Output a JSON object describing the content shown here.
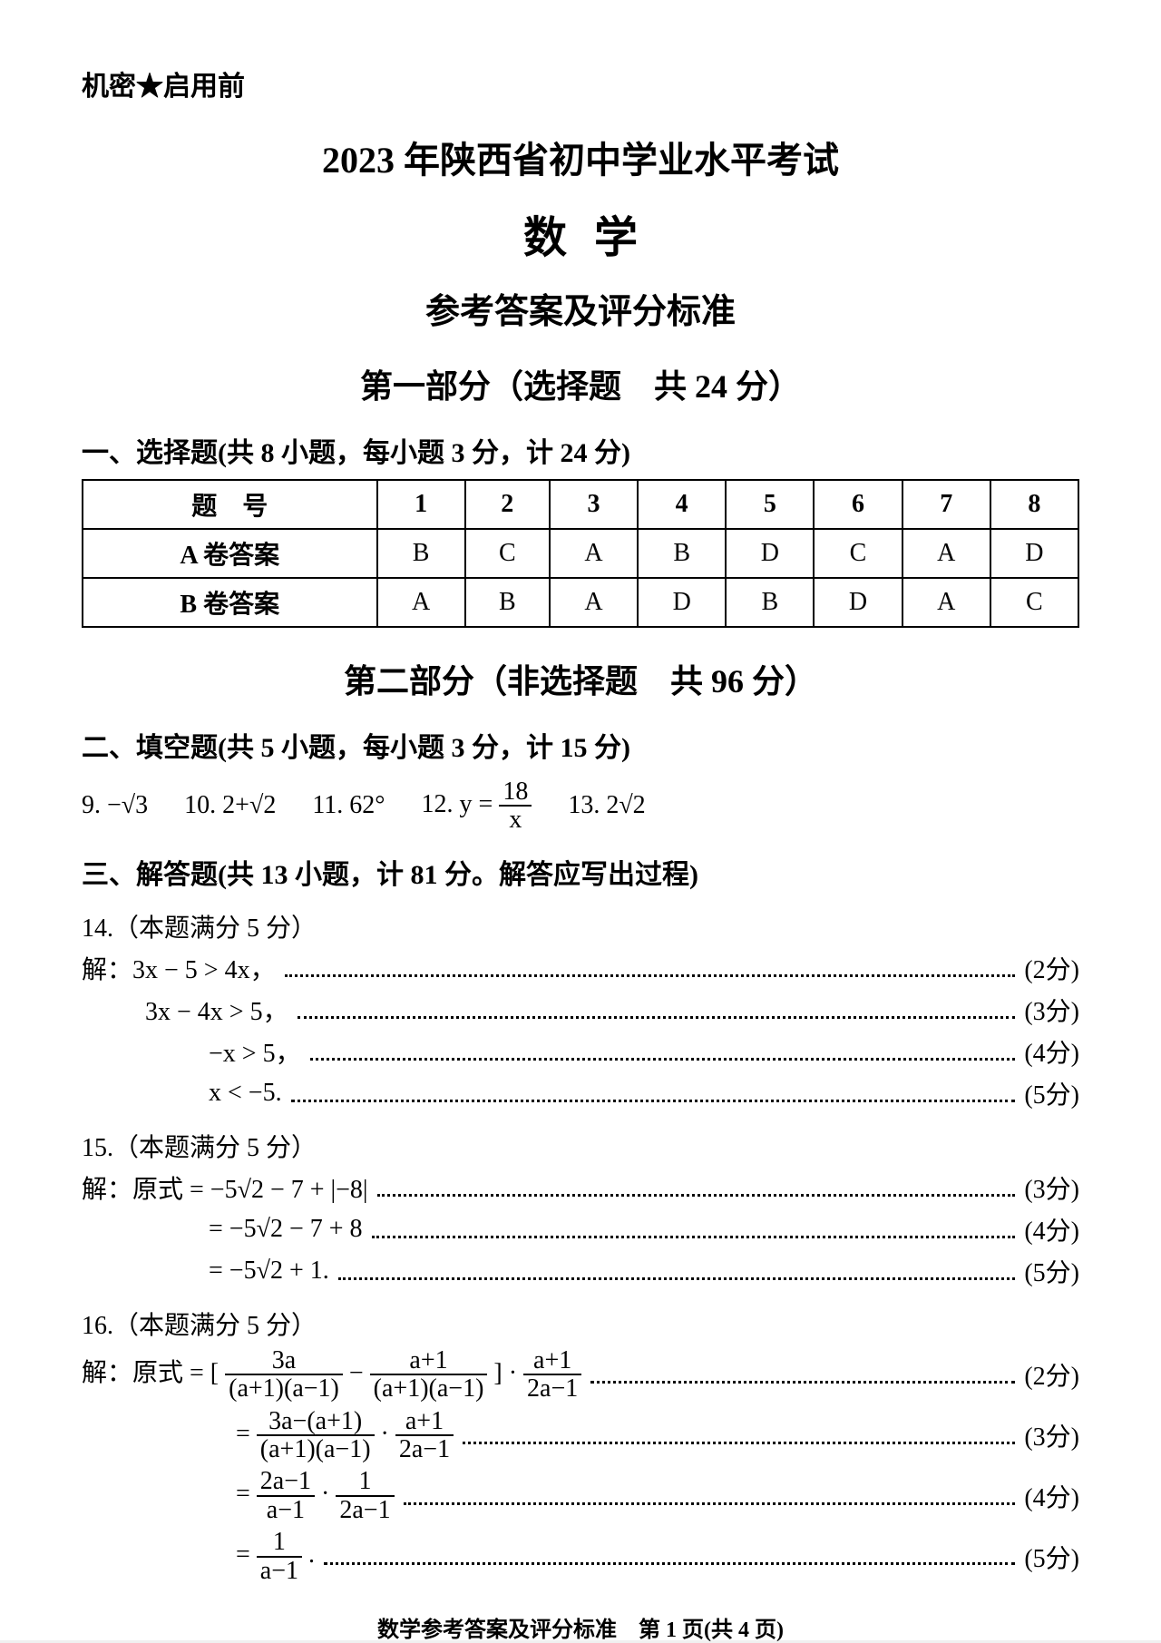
{
  "header": {
    "confidential": "机密★启用前",
    "title_line1": "2023 年陕西省初中学业水平考试",
    "title_line2": "数学",
    "title_line3": "参考答案及评分标准",
    "part1_label": "第一部分（选择题　共 24 分）",
    "part2_label": "第二部分（非选择题　共 96 分）"
  },
  "section1": {
    "label": "一、选择题(共 8 小题，每小题 3 分，计 24 分)",
    "table": {
      "header_label": "题　号",
      "rowA_label": "A 卷答案",
      "rowB_label": "B 卷答案",
      "cols": [
        "1",
        "2",
        "3",
        "4",
        "5",
        "6",
        "7",
        "8"
      ],
      "rowA": [
        "B",
        "C",
        "A",
        "B",
        "D",
        "C",
        "A",
        "D"
      ],
      "rowB": [
        "A",
        "B",
        "A",
        "D",
        "B",
        "D",
        "A",
        "C"
      ]
    }
  },
  "section2": {
    "label": "二、填空题(共 5 小题，每小题 3 分，计 15 分)",
    "q9": "9. −√3",
    "q10": "10. 2+√2",
    "q11": "11. 62°",
    "q12_prefix": "12. y = ",
    "q12_num": "18",
    "q12_den": "x",
    "q13": "13. 2√2"
  },
  "section3": {
    "label": "三、解答题(共 13 小题，计 81 分。解答应写出过程)"
  },
  "q14": {
    "header": "14.（本题满分 5 分）",
    "lines": [
      {
        "lhs": "解：3x − 5 > 4x，",
        "pts": "(2分)"
      },
      {
        "lhs": "3x − 4x > 5，",
        "pts": "(3分)",
        "indent": "indent1"
      },
      {
        "lhs": "−x > 5，",
        "pts": "(4分)",
        "indent": "indent2"
      },
      {
        "lhs": "x < −5.",
        "pts": "(5分)",
        "indent": "indent2"
      }
    ]
  },
  "q15": {
    "header": "15.（本题满分 5 分）",
    "lines": [
      {
        "lhs": "解：原式 = −5√2 − 7 + |−8|",
        "pts": "(3分)"
      },
      {
        "lhs": "= −5√2 − 7 + 8",
        "pts": "(4分)",
        "indent": "indent2"
      },
      {
        "lhs": "= −5√2 + 1.",
        "pts": "(5分)",
        "indent": "indent2"
      }
    ]
  },
  "q16": {
    "header": "16.（本题满分 5 分）",
    "l1_pre": "解：原式 = [ ",
    "l1_f1_num": "3a",
    "l1_f1_den": "(a+1)(a−1)",
    "l1_mid1": " − ",
    "l1_f2_num": "a+1",
    "l1_f2_den": "(a+1)(a−1)",
    "l1_mid2": " ] · ",
    "l1_f3_num": "a+1",
    "l1_f3_den": "2a−1",
    "l1_pts": "(2分)",
    "l2_pre": "= ",
    "l2_f1_num": "3a−(a+1)",
    "l2_f1_den": "(a+1)(a−1)",
    "l2_mid": " · ",
    "l2_f2_num": "a+1",
    "l2_f2_den": "2a−1",
    "l2_pts": "(3分)",
    "l3_pre": "= ",
    "l3_f1_num": "2a−1",
    "l3_f1_den": "a−1",
    "l3_mid": " · ",
    "l3_f2_num": "1",
    "l3_f2_den": "2a−1",
    "l3_pts": "(4分)",
    "l4_pre": "= ",
    "l4_f_num": "1",
    "l4_f_den": "a−1",
    "l4_post": " .",
    "l4_pts": "(5分)"
  },
  "footer": "数学参考答案及评分标准　第 1 页(共 4 页)"
}
